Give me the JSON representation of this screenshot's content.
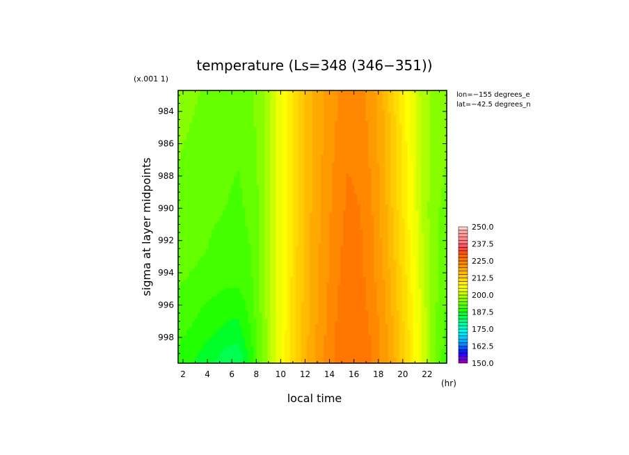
{
  "chart_data": {
    "type": "heatmap",
    "title": "temperature (Ls=348 (346−351))",
    "xlabel": "local time",
    "ylabel": "sigma at layer midpoints",
    "x_unit": "(hr)",
    "y_scale_note": "(x.001 1)",
    "annotations": [
      "lon=−155 degrees_e",
      "lat=−42.5 degrees_n"
    ],
    "xlim": [
      1.6,
      23.6
    ],
    "ylim": [
      982.7,
      999.6
    ],
    "y_inverted": true,
    "x_ticks": [
      2,
      4,
      6,
      8,
      10,
      12,
      14,
      16,
      18,
      20,
      22
    ],
    "y_ticks": [
      984,
      986,
      988,
      990,
      992,
      994,
      996,
      998
    ],
    "x": [
      1.5,
      2.5,
      3.5,
      4.5,
      5.5,
      6.5,
      7.5,
      8.5,
      9.5,
      10.5,
      11.5,
      12.5,
      13.5,
      14.5,
      15.5,
      16.5,
      17.5,
      18.5,
      19.5,
      20.5,
      21.5,
      22.5,
      23.5
    ],
    "y": [
      982.7,
      985.0,
      987.5,
      990.0,
      992.5,
      995.0,
      997.5,
      999.6
    ],
    "z": [
      [
        196.0,
        195.5,
        195.0,
        194.5,
        194.0,
        194.0,
        194.5,
        197.0,
        202.0,
        207.0,
        213.0,
        217.0,
        220.0,
        222.0,
        224.0,
        223.5,
        221.0,
        217.0,
        211.0,
        205.0,
        199.5,
        196.5,
        196.0
      ],
      [
        195.5,
        195.0,
        194.5,
        194.0,
        193.5,
        193.5,
        194.0,
        196.5,
        201.5,
        207.0,
        213.0,
        217.0,
        220.0,
        222.5,
        224.5,
        224.0,
        221.5,
        217.5,
        212.0,
        206.0,
        200.0,
        196.5,
        195.5
      ],
      [
        195.0,
        194.5,
        194.0,
        193.5,
        193.0,
        192.5,
        193.5,
        196.0,
        201.5,
        207.0,
        213.0,
        217.0,
        220.5,
        223.0,
        225.0,
        224.5,
        222.0,
        218.0,
        212.5,
        206.5,
        200.5,
        196.0,
        195.0
      ],
      [
        194.5,
        194.0,
        193.5,
        193.0,
        192.5,
        192.0,
        193.0,
        196.0,
        201.5,
        207.5,
        213.0,
        217.5,
        221.0,
        223.5,
        225.5,
        225.0,
        222.5,
        218.5,
        213.0,
        207.0,
        200.5,
        195.5,
        194.5
      ],
      [
        194.0,
        193.5,
        193.0,
        192.0,
        191.5,
        191.5,
        192.5,
        196.0,
        201.5,
        207.5,
        213.5,
        218.0,
        221.0,
        224.0,
        226.0,
        225.5,
        223.0,
        219.0,
        214.0,
        208.0,
        201.0,
        195.5,
        194.0
      ],
      [
        192.5,
        192.0,
        191.0,
        190.5,
        190.0,
        190.0,
        191.5,
        196.0,
        201.5,
        208.0,
        213.5,
        218.0,
        221.5,
        224.5,
        226.5,
        226.0,
        223.5,
        220.0,
        215.0,
        209.0,
        202.0,
        196.0,
        193.0
      ],
      [
        191.0,
        190.0,
        189.0,
        188.0,
        187.0,
        186.5,
        190.0,
        195.5,
        201.5,
        208.0,
        214.0,
        218.5,
        222.0,
        225.0,
        227.0,
        226.5,
        224.5,
        221.0,
        216.0,
        210.0,
        203.0,
        196.0,
        192.0
      ],
      [
        189.0,
        188.0,
        186.5,
        185.0,
        183.5,
        182.5,
        188.0,
        195.0,
        201.5,
        208.5,
        214.5,
        219.0,
        222.5,
        225.5,
        227.5,
        227.0,
        225.0,
        221.5,
        217.0,
        211.0,
        203.5,
        196.0,
        191.0
      ]
    ],
    "colorbar": {
      "min": 150.0,
      "max": 250.0,
      "step": 2.5,
      "labels": [
        "250.0",
        "237.5",
        "225.0",
        "212.5",
        "200.0",
        "187.5",
        "175.0",
        "162.5",
        "150.0"
      ],
      "colors": [
        "#8800bb",
        "#6600dd",
        "#3300ff",
        "#0022ff",
        "#0055ff",
        "#0088ff",
        "#00aaff",
        "#00ccff",
        "#00e6ff",
        "#00ffee",
        "#00ffc8",
        "#00ffa0",
        "#00ff78",
        "#00ff50",
        "#00ff28",
        "#22ff00",
        "#44ff00",
        "#66ff00",
        "#88ff00",
        "#aaff00",
        "#ccff00",
        "#eeff00",
        "#ffff00",
        "#ffee00",
        "#ffdd00",
        "#ffcc00",
        "#ffbb00",
        "#ffaa00",
        "#ff9900",
        "#ff8800",
        "#ff7700",
        "#ff6600",
        "#ff5500",
        "#ff4444",
        "#ff5566",
        "#ff7777",
        "#ff8888",
        "#ff9999",
        "#ffaaaa",
        "#ffcccc"
      ]
    }
  }
}
